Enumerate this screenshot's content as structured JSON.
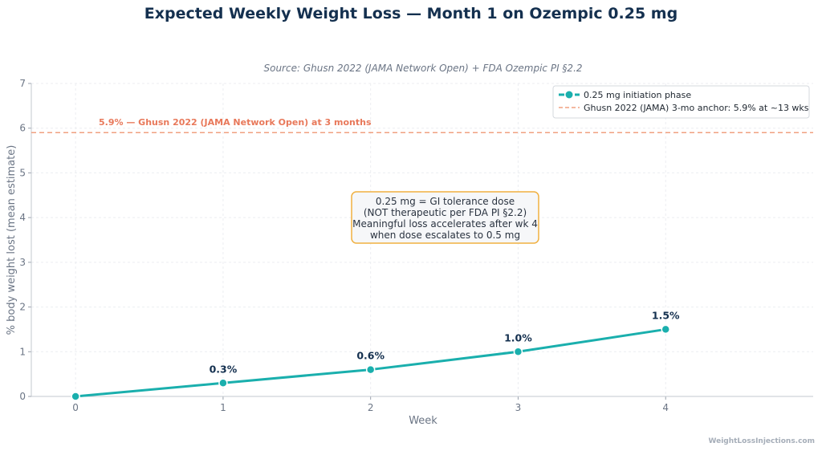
{
  "chart_data": {
    "type": "line",
    "title": "Expected Weekly Weight Loss — Month 1 on Ozempic 0.25 mg",
    "subtitle": "Source: Ghusn 2022 (JAMA Network Open) + FDA Ozempic PI §2.2",
    "xlabel": "Week",
    "ylabel": "% body weight lost (mean estimate)",
    "xlim": [
      -0.3,
      5.0
    ],
    "ylim": [
      0,
      7
    ],
    "x_ticks": [
      0,
      1,
      2,
      3,
      4
    ],
    "y_ticks": [
      0,
      1,
      2,
      3,
      4,
      5,
      6,
      7
    ],
    "grid": true,
    "legend_position": "top-right",
    "series": [
      {
        "name": "0.25 mg initiation phase",
        "color": "#1aafad",
        "x": [
          0,
          1,
          2,
          3,
          4
        ],
        "y": [
          0,
          0.3,
          0.6,
          1.0,
          1.5
        ],
        "labels": [
          "",
          "0.3%",
          "0.6%",
          "1.0%",
          "1.5%"
        ]
      }
    ],
    "reference_line": {
      "name": "Ghusn 2022 (JAMA) 3-mo anchor: 5.9% at ~13 wks",
      "y": 5.9,
      "color": "#f0a080",
      "label": "5.9% — Ghusn 2022 (JAMA Network Open) at 3 months",
      "label_color": "#e8785a"
    },
    "annotation": {
      "lines": [
        "0.25 mg = GI tolerance dose",
        "(NOT therapeutic per FDA PI §2.2)",
        "Meaningful loss accelerates after wk 4",
        "when dose escalates to 0.5 mg"
      ],
      "border_color": "#f0b040"
    },
    "watermark": "WeightLossInjections.com"
  }
}
